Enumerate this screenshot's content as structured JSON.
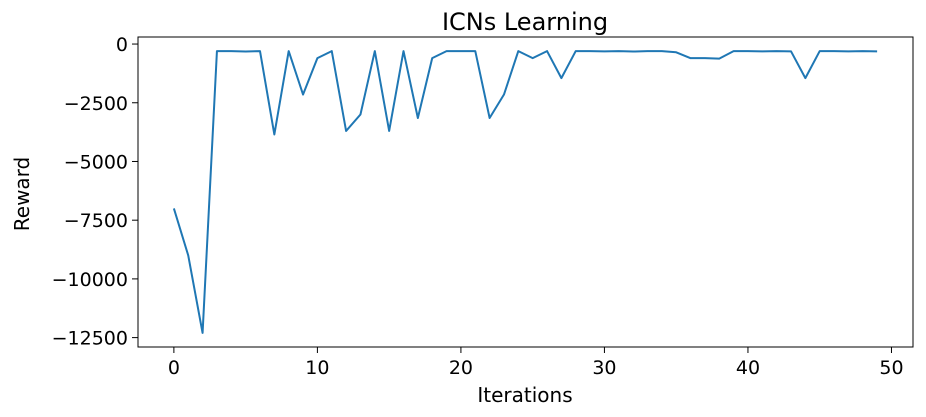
{
  "chart_data": {
    "type": "line",
    "title": "ICNs Learning",
    "xlabel": "Iterations",
    "ylabel": "Reward",
    "xlim": [
      -2.5,
      51.5
    ],
    "ylim": [
      -12900,
      300
    ],
    "x_ticks": [
      0,
      10,
      20,
      30,
      40,
      50
    ],
    "y_ticks": [
      0,
      -2500,
      -5000,
      -7500,
      -10000,
      -12500
    ],
    "y_tick_labels": [
      "0",
      "−2500",
      "−5000",
      "−7500",
      "−10000",
      "−12500"
    ],
    "grid": false,
    "legend": "none",
    "series": [
      {
        "color": "#1f77b4",
        "x": [
          0,
          1,
          2,
          3,
          4,
          5,
          6,
          7,
          8,
          9,
          10,
          11,
          12,
          13,
          14,
          15,
          16,
          17,
          18,
          19,
          20,
          21,
          22,
          23,
          24,
          25,
          26,
          27,
          28,
          29,
          30,
          31,
          32,
          33,
          34,
          35,
          36,
          37,
          38,
          39,
          40,
          41,
          42,
          43,
          44,
          45,
          46,
          47,
          48,
          49
        ],
        "y": [
          -7000,
          -9000,
          -12300,
          -300,
          -300,
          -320,
          -300,
          -3850,
          -300,
          -2150,
          -600,
          -300,
          -3700,
          -3000,
          -300,
          -3700,
          -300,
          -3150,
          -600,
          -300,
          -300,
          -300,
          -3150,
          -2150,
          -300,
          -600,
          -300,
          -1450,
          -300,
          -300,
          -310,
          -300,
          -320,
          -300,
          -300,
          -350,
          -600,
          -600,
          -620,
          -300,
          -300,
          -310,
          -300,
          -310,
          -1450,
          -300,
          -300,
          -310,
          -300,
          -310
        ]
      }
    ]
  }
}
